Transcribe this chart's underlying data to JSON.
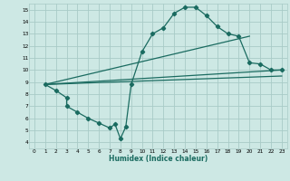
{
  "xlabel": "Humidex (Indice chaleur)",
  "bg_color": "#cde8e4",
  "grid_color": "#a8cbc7",
  "line_color": "#1a6b60",
  "xlim": [
    -0.5,
    23.5
  ],
  "ylim": [
    3.5,
    15.5
  ],
  "xticks": [
    0,
    1,
    2,
    3,
    4,
    5,
    6,
    7,
    8,
    9,
    10,
    11,
    12,
    13,
    14,
    15,
    16,
    17,
    18,
    19,
    20,
    21,
    22,
    23
  ],
  "yticks": [
    4,
    5,
    6,
    7,
    8,
    9,
    10,
    11,
    12,
    13,
    14,
    15
  ],
  "line1_x": [
    1,
    2,
    3,
    3,
    4,
    5,
    6,
    7,
    7.5,
    8,
    8.5,
    9,
    10,
    11,
    12,
    13,
    14,
    15,
    16,
    17,
    18,
    19,
    20,
    21,
    22,
    23
  ],
  "line1_y": [
    8.8,
    8.3,
    7.7,
    7.0,
    6.5,
    6.0,
    5.6,
    5.2,
    5.5,
    4.3,
    5.3,
    8.8,
    11.5,
    13.0,
    13.5,
    14.7,
    15.2,
    15.2,
    14.5,
    13.6,
    13.0,
    12.8,
    10.6,
    10.5,
    10.0,
    10.0
  ],
  "line2_x": [
    1,
    20
  ],
  "line2_y": [
    8.8,
    12.8
  ],
  "line3_x": [
    1,
    23
  ],
  "line3_y": [
    8.8,
    9.5
  ],
  "line4_x": [
    1,
    23
  ],
  "line4_y": [
    8.8,
    10.0
  ]
}
